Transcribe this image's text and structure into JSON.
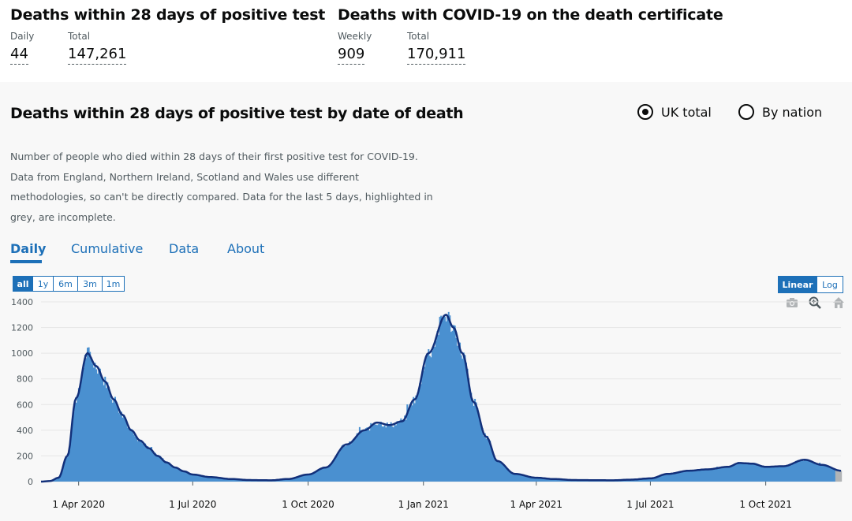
{
  "summary": {
    "left": {
      "heading": "Deaths within 28 days of positive test",
      "stats": [
        {
          "label": "Daily",
          "value": "44"
        },
        {
          "label": "Total",
          "value": "147,261"
        }
      ]
    },
    "right": {
      "heading": "Deaths with COVID-19 on the death certificate",
      "stats": [
        {
          "label": "Weekly",
          "value": "909"
        },
        {
          "label": "Total",
          "value": "170,911"
        }
      ]
    }
  },
  "card": {
    "title": "Deaths within 28 days of positive test by date of death",
    "radios": [
      {
        "label": "UK total",
        "selected": true
      },
      {
        "label": "By nation",
        "selected": false
      }
    ],
    "description": "Number of people who died within 28 days of their first positive test for COVID-19. Data from England, Northern Ireland, Scotland and Wales use different methodologies, so can't be directly compared. Data for the last 5 days, highlighted in grey, are incomplete.",
    "tabs": [
      "Daily",
      "Cumulative",
      "Data",
      "About"
    ],
    "active_tab": "Daily",
    "range_buttons": [
      "all",
      "1y",
      "6m",
      "3m",
      "1m"
    ],
    "active_range": "all",
    "scale_buttons": [
      "Linear",
      "Log"
    ],
    "active_scale": "Linear",
    "toolbar_icons": [
      "camera-icon",
      "zoom-icon",
      "home-icon"
    ]
  },
  "colors": {
    "bar": "#4a90d0",
    "line": "#12307a",
    "accent": "#1d70b8",
    "incomplete": "#b1b4b6"
  },
  "chart_data": {
    "type": "bar",
    "title": "",
    "xlabel": "",
    "ylabel": "",
    "ylim": [
      0,
      1400
    ],
    "y_ticks": [
      0,
      200,
      400,
      600,
      800,
      1000,
      1200,
      1400
    ],
    "x_ticks": [
      "1 Apr 2020",
      "1 Jul 2020",
      "1 Oct 2020",
      "1 Jan 2021",
      "1 Apr 2021",
      "1 Jul 2021",
      "1 Oct 2021"
    ],
    "x_range": [
      "2020-03-02",
      "2021-11-30"
    ],
    "grid": true,
    "series": [
      {
        "kind": "bar",
        "values_note": "daily deaths",
        "points": [
          [
            "2020-03-02",
            0
          ],
          [
            "2020-03-09",
            4
          ],
          [
            "2020-03-16",
            30
          ],
          [
            "2020-03-23",
            200
          ],
          [
            "2020-03-30",
            650
          ],
          [
            "2020-04-08",
            1000
          ],
          [
            "2020-04-15",
            900
          ],
          [
            "2020-04-22",
            780
          ],
          [
            "2020-04-29",
            640
          ],
          [
            "2020-05-06",
            520
          ],
          [
            "2020-05-13",
            400
          ],
          [
            "2020-05-20",
            320
          ],
          [
            "2020-05-27",
            260
          ],
          [
            "2020-06-03",
            200
          ],
          [
            "2020-06-10",
            150
          ],
          [
            "2020-06-17",
            110
          ],
          [
            "2020-06-24",
            80
          ],
          [
            "2020-07-01",
            55
          ],
          [
            "2020-07-15",
            35
          ],
          [
            "2020-08-01",
            20
          ],
          [
            "2020-08-15",
            12
          ],
          [
            "2020-09-01",
            10
          ],
          [
            "2020-09-15",
            20
          ],
          [
            "2020-10-01",
            55
          ],
          [
            "2020-10-15",
            110
          ],
          [
            "2020-11-01",
            290
          ],
          [
            "2020-11-15",
            400
          ],
          [
            "2020-11-25",
            460
          ],
          [
            "2020-12-05",
            440
          ],
          [
            "2020-12-15",
            470
          ],
          [
            "2020-12-25",
            640
          ],
          [
            "2021-01-05",
            1000
          ],
          [
            "2021-01-19",
            1300
          ],
          [
            "2021-01-25",
            1200
          ],
          [
            "2021-02-01",
            1000
          ],
          [
            "2021-02-10",
            620
          ],
          [
            "2021-02-20",
            350
          ],
          [
            "2021-03-01",
            160
          ],
          [
            "2021-03-15",
            60
          ],
          [
            "2021-04-01",
            30
          ],
          [
            "2021-04-15",
            20
          ],
          [
            "2021-05-01",
            12
          ],
          [
            "2021-06-01",
            10
          ],
          [
            "2021-06-15",
            15
          ],
          [
            "2021-07-01",
            25
          ],
          [
            "2021-07-15",
            60
          ],
          [
            "2021-08-01",
            85
          ],
          [
            "2021-08-15",
            95
          ],
          [
            "2021-09-01",
            115
          ],
          [
            "2021-09-10",
            145
          ],
          [
            "2021-09-20",
            140
          ],
          [
            "2021-10-01",
            115
          ],
          [
            "2021-10-15",
            120
          ],
          [
            "2021-11-01",
            170
          ],
          [
            "2021-11-15",
            130
          ],
          [
            "2021-11-30",
            85
          ]
        ]
      },
      {
        "kind": "line",
        "values_note": "7-day rolling average"
      }
    ]
  }
}
